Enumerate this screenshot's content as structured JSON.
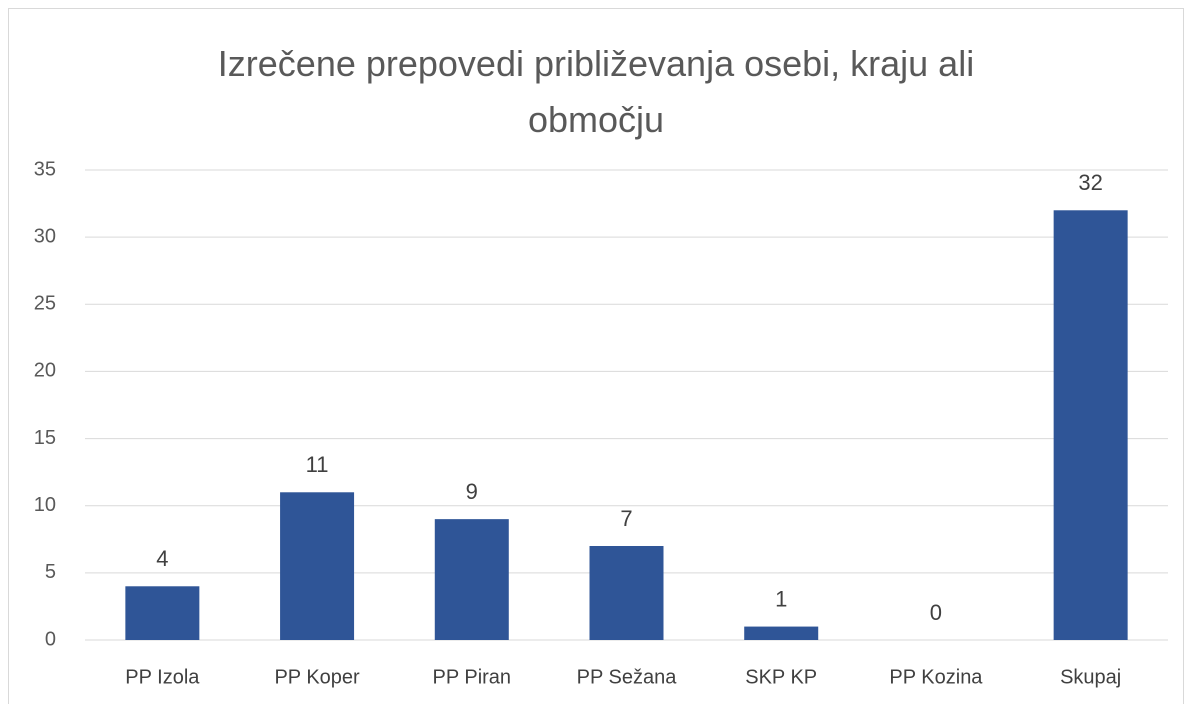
{
  "chart_data": {
    "type": "bar",
    "title": "Izrečene prepovedi približevanja osebi, kraju ali območju",
    "categories": [
      "PP Izola",
      "PP Koper",
      "PP Piran",
      "PP Sežana",
      "SKP KP",
      "PP Kozina",
      "Skupaj"
    ],
    "values": [
      4,
      11,
      9,
      7,
      1,
      0,
      32
    ],
    "color": "#2f5597",
    "ylim": [
      0,
      35
    ],
    "yticks": [
      0,
      5,
      10,
      15,
      20,
      25,
      30,
      35
    ],
    "grid": true
  }
}
